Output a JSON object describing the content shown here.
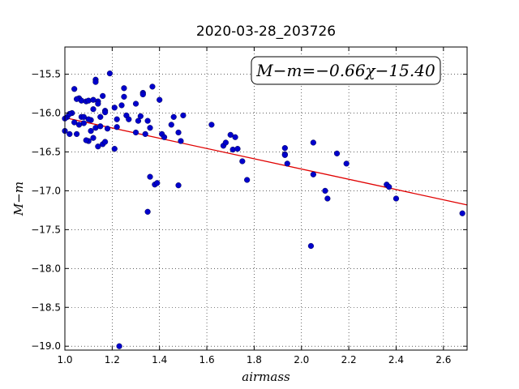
{
  "chart_data": {
    "type": "scatter",
    "title": "2020-03-28_203726",
    "xlabel": "airmass",
    "ylabel": "M−m",
    "xlim": [
      1.0,
      2.7
    ],
    "ylim": [
      -19.05,
      -15.15
    ],
    "xticks": [
      1.0,
      1.2,
      1.4,
      1.6,
      1.8,
      2.0,
      2.2,
      2.4,
      2.6
    ],
    "xtick_labels": [
      "1.0",
      "1.2",
      "1.4",
      "1.6",
      "1.8",
      "2.0",
      "2.2",
      "2.4",
      "2.6"
    ],
    "yticks": [
      -15.5,
      -16.0,
      -16.5,
      -17.0,
      -17.5,
      -18.0,
      -18.5,
      -19.0
    ],
    "ytick_labels": [
      "−15.5",
      "−16.0",
      "−16.5",
      "−17.0",
      "−17.5",
      "−18.0",
      "−18.5",
      "−19.0"
    ],
    "grid": true,
    "annotation": "M−m=−0.66χ−15.40",
    "point_color": "#0000cc",
    "fit_color": "#e00000",
    "series": [
      {
        "kind": "points",
        "x": [
          1.0,
          1.01,
          1.02,
          1.03,
          1.04,
          1.05,
          1.06,
          1.07,
          1.08,
          1.09,
          1.1,
          1.11,
          1.11,
          1.12,
          1.13,
          1.13,
          1.14,
          1.14,
          1.15,
          1.16,
          1.17,
          1.18,
          1.0,
          1.02,
          1.04,
          1.05,
          1.07,
          1.09,
          1.1,
          1.12,
          1.14,
          1.16,
          1.17,
          1.19,
          1.21,
          1.22,
          1.24,
          1.25,
          1.26,
          1.27,
          1.3,
          1.31,
          1.32,
          1.33,
          1.34,
          1.35,
          1.36,
          1.37,
          1.38,
          1.4,
          1.41,
          1.42,
          1.45,
          1.46,
          1.48,
          1.49,
          1.5,
          1.33,
          1.3,
          1.25,
          1.22,
          1.21,
          1.15,
          1.1,
          1.08,
          1.06,
          1.13,
          1.12,
          1.17,
          1.23,
          1.35,
          1.36,
          1.39,
          1.62,
          1.67,
          1.68,
          1.7,
          1.71,
          1.72,
          1.73,
          1.75,
          1.77,
          1.93,
          1.93,
          1.94,
          1.93,
          2.05,
          2.05,
          2.04,
          2.1,
          2.11,
          2.15,
          2.19,
          2.36,
          2.37,
          2.4,
          2.68,
          1.48
        ],
        "y": [
          -16.23,
          -16.05,
          -16.27,
          -16.0,
          -15.69,
          -16.27,
          -15.81,
          -15.84,
          -16.13,
          -15.85,
          -16.36,
          -16.09,
          -16.23,
          -16.32,
          -15.57,
          -16.19,
          -15.85,
          -16.43,
          -16.17,
          -16.4,
          -16.37,
          -16.2,
          -16.07,
          -16.01,
          -16.12,
          -15.82,
          -16.05,
          -16.35,
          -16.08,
          -15.95,
          -15.88,
          -15.78,
          -15.97,
          -15.49,
          -15.93,
          -16.08,
          -15.9,
          -15.68,
          -16.03,
          -16.08,
          -16.25,
          -16.1,
          -16.04,
          -15.74,
          -16.27,
          -16.1,
          -16.82,
          -15.66,
          -16.92,
          -15.83,
          -16.27,
          -16.31,
          -16.15,
          -16.05,
          -16.93,
          -16.36,
          -16.03,
          -15.76,
          -15.88,
          -15.79,
          -16.18,
          -16.46,
          -16.05,
          -15.84,
          -16.05,
          -16.15,
          -15.6,
          -15.83,
          -15.99,
          -19.0,
          -17.27,
          -16.19,
          -16.9,
          -16.15,
          -16.42,
          -16.38,
          -16.28,
          -16.47,
          -16.31,
          -16.46,
          -16.62,
          -16.86,
          -16.45,
          -16.53,
          -16.65,
          -16.54,
          -16.38,
          -16.79,
          -17.71,
          -17.0,
          -17.1,
          -16.52,
          -16.65,
          -16.92,
          -16.95,
          -17.1,
          -17.29,
          -16.25
        ]
      },
      {
        "kind": "fit-line",
        "slope": -0.66,
        "intercept": -15.4
      }
    ]
  }
}
